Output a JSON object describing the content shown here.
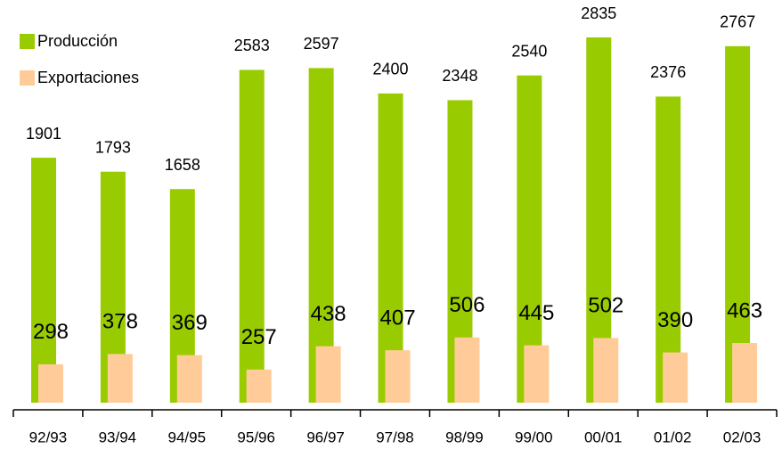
{
  "chart_data": {
    "type": "bar",
    "categories": [
      "92/93",
      "93/94",
      "94/95",
      "95/96",
      "96/97",
      "97/98",
      "98/99",
      "99/00",
      "00/01",
      "01/02",
      "02/03"
    ],
    "series": [
      {
        "name": "Producción",
        "color": "#99cc00",
        "values": [
          1901,
          1793,
          1658,
          2583,
          2597,
          2400,
          2348,
          2540,
          2835,
          2376,
          2767
        ]
      },
      {
        "name": "Exportaciones",
        "color": "#ffcc99",
        "values": [
          298,
          378,
          369,
          257,
          438,
          407,
          506,
          445,
          502,
          390,
          463
        ]
      }
    ],
    "legend": "top-left"
  }
}
